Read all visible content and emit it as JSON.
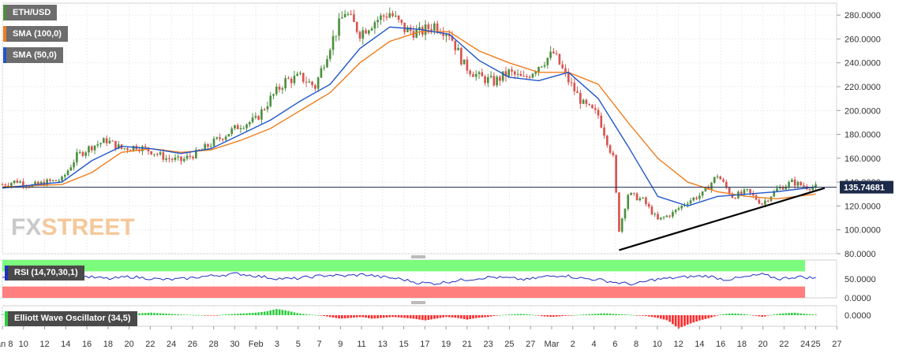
{
  "chart_data": [
    {
      "type": "candlestick",
      "legend": [
        {
          "label": "ETH/USD",
          "color": "#4d8f3f"
        },
        {
          "label": "SMA (100,0)",
          "color": "#f07d1e"
        },
        {
          "label": "SMA (50,0)",
          "color": "#1f56c9"
        }
      ],
      "ylim": [
        80,
        290
      ],
      "yticks": [
        "80.0000",
        "100.0000",
        "120.0000",
        "140.0000",
        "160.0000",
        "180.0000",
        "200.0000",
        "220.0000",
        "240.0000",
        "260.0000",
        "280.0000"
      ],
      "ytick_values": [
        80,
        100,
        120,
        140,
        160,
        180,
        200,
        220,
        240,
        260,
        280
      ],
      "current_price": 135.74681,
      "current_price_label": "135.74681",
      "price_close_path": [
        [
          0,
          138
        ],
        [
          5,
          141
        ],
        [
          10,
          137
        ],
        [
          15,
          140
        ],
        [
          20,
          142
        ],
        [
          25,
          162
        ],
        [
          30,
          170
        ],
        [
          35,
          175
        ],
        [
          40,
          168
        ],
        [
          45,
          170
        ],
        [
          50,
          166
        ],
        [
          55,
          160
        ],
        [
          60,
          158
        ],
        [
          65,
          164
        ],
        [
          70,
          172
        ],
        [
          75,
          180
        ],
        [
          80,
          188
        ],
        [
          85,
          192
        ],
        [
          90,
          210
        ],
        [
          95,
          225
        ],
        [
          100,
          228
        ],
        [
          105,
          220
        ],
        [
          110,
          255
        ],
        [
          115,
          283
        ],
        [
          120,
          265
        ],
        [
          125,
          275
        ],
        [
          130,
          282
        ],
        [
          135,
          268
        ],
        [
          140,
          265
        ],
        [
          145,
          272
        ],
        [
          150,
          265
        ],
        [
          155,
          238
        ],
        [
          160,
          228
        ],
        [
          165,
          224
        ],
        [
          170,
          232
        ],
        [
          175,
          226
        ],
        [
          180,
          238
        ],
        [
          185,
          248
        ],
        [
          190,
          225
        ],
        [
          195,
          205
        ],
        [
          200,
          196
        ],
        [
          205,
          160
        ],
        [
          207,
          100
        ],
        [
          210,
          130
        ],
        [
          215,
          125
        ],
        [
          220,
          108
        ],
        [
          225,
          114
        ],
        [
          230,
          124
        ],
        [
          235,
          130
        ],
        [
          240,
          146
        ],
        [
          245,
          128
        ],
        [
          250,
          132
        ],
        [
          255,
          122
        ],
        [
          260,
          134
        ],
        [
          265,
          140
        ],
        [
          270,
          136
        ],
        [
          273,
          135.7
        ]
      ],
      "sma_100_path": [
        [
          0,
          136
        ],
        [
          20,
          138
        ],
        [
          30,
          148
        ],
        [
          40,
          165
        ],
        [
          50,
          168
        ],
        [
          60,
          165
        ],
        [
          70,
          167
        ],
        [
          80,
          175
        ],
        [
          90,
          185
        ],
        [
          100,
          200
        ],
        [
          110,
          215
        ],
        [
          120,
          240
        ],
        [
          130,
          258
        ],
        [
          140,
          266
        ],
        [
          150,
          266
        ],
        [
          160,
          250
        ],
        [
          170,
          240
        ],
        [
          180,
          232
        ],
        [
          190,
          232
        ],
        [
          200,
          222
        ],
        [
          210,
          190
        ],
        [
          220,
          160
        ],
        [
          230,
          140
        ],
        [
          240,
          132
        ],
        [
          250,
          128
        ],
        [
          260,
          126
        ],
        [
          273,
          130
        ]
      ],
      "sma_50_path": [
        [
          0,
          135
        ],
        [
          20,
          140
        ],
        [
          30,
          158
        ],
        [
          40,
          170
        ],
        [
          50,
          168
        ],
        [
          60,
          164
        ],
        [
          70,
          168
        ],
        [
          80,
          180
        ],
        [
          90,
          192
        ],
        [
          100,
          208
        ],
        [
          110,
          222
        ],
        [
          120,
          252
        ],
        [
          130,
          270
        ],
        [
          140,
          268
        ],
        [
          150,
          264
        ],
        [
          160,
          242
        ],
        [
          170,
          228
        ],
        [
          180,
          225
        ],
        [
          190,
          232
        ],
        [
          200,
          210
        ],
        [
          210,
          170
        ],
        [
          220,
          128
        ],
        [
          230,
          120
        ],
        [
          240,
          128
        ],
        [
          250,
          130
        ],
        [
          260,
          132
        ],
        [
          273,
          136
        ]
      ],
      "trendline": [
        [
          207,
          83
        ],
        [
          276,
          135
        ]
      ]
    },
    {
      "type": "line",
      "label": "RSI (14,70,30,1)",
      "ylim": [
        0,
        100
      ],
      "yticks": [
        "50.0000",
        "0.0000"
      ],
      "ytick_values": [
        50,
        0
      ],
      "overbought": 70,
      "oversold": 30,
      "overbought_color": "#7cfc7c",
      "oversold_color": "#ff7f7f",
      "line_color": "#1f2fbf",
      "values": [
        52,
        55,
        50,
        58,
        60,
        54,
        50,
        56,
        52,
        48,
        50,
        56,
        60,
        64,
        58,
        52,
        50,
        55,
        60,
        58,
        62,
        55,
        50,
        40,
        38,
        45,
        50,
        55,
        52,
        48,
        56,
        60,
        52,
        48,
        40,
        36,
        48,
        52,
        56,
        58,
        48,
        54,
        62,
        50,
        56,
        52
      ]
    },
    {
      "type": "bar",
      "label": "Elliott Wave Oscillator (34,5)",
      "yticks": [
        "0.0000"
      ],
      "ytick_values": [
        0
      ],
      "positive_color": "#2ecc40",
      "negative_color": "#ff2a2a",
      "values": [
        1,
        2,
        3,
        2,
        1,
        0.5,
        0.2,
        0,
        -0.3,
        -0.2,
        0.5,
        1,
        2,
        3,
        4,
        3,
        2,
        1,
        0.5,
        0,
        -0.5,
        1,
        2,
        3,
        4,
        6,
        10,
        7,
        3,
        1,
        0,
        -2,
        -4,
        -3,
        -2,
        -4,
        -3,
        -2,
        -3,
        -4,
        -6,
        -4,
        -2,
        -3,
        -5,
        -3,
        -2,
        0,
        1,
        2,
        1,
        -1,
        -2,
        -1,
        0,
        1,
        2,
        3,
        2,
        1,
        0,
        -1,
        -3,
        -6,
        -15,
        -10,
        -6,
        -3,
        1,
        3,
        2,
        0,
        -2,
        1,
        3,
        4,
        2,
        1
      ]
    }
  ],
  "x_axis": {
    "labels": [
      "Jan 8",
      "10",
      "12",
      "14",
      "16",
      "18",
      "20",
      "22",
      "24",
      "26",
      "28",
      "30",
      "Feb",
      "3",
      "5",
      "7",
      "9",
      "11",
      "13",
      "15",
      "17",
      "19",
      "21",
      "23",
      "25",
      "27",
      "Mar",
      "2",
      "4",
      "6",
      "8",
      "10",
      "12",
      "14",
      "16",
      "18",
      "20",
      "22",
      "24",
      "25",
      "27"
    ],
    "day_index": [
      0,
      2,
      4,
      6,
      8,
      10,
      12,
      14,
      16,
      18,
      20,
      22,
      24,
      26,
      28,
      30,
      32,
      34,
      36,
      38,
      40,
      42,
      44,
      46,
      48,
      50,
      52,
      54,
      56,
      58,
      60,
      62,
      64,
      66,
      68,
      70,
      72,
      74,
      76,
      77,
      79
    ]
  },
  "watermark": {
    "part1": "FX",
    "part2": "STREET"
  }
}
